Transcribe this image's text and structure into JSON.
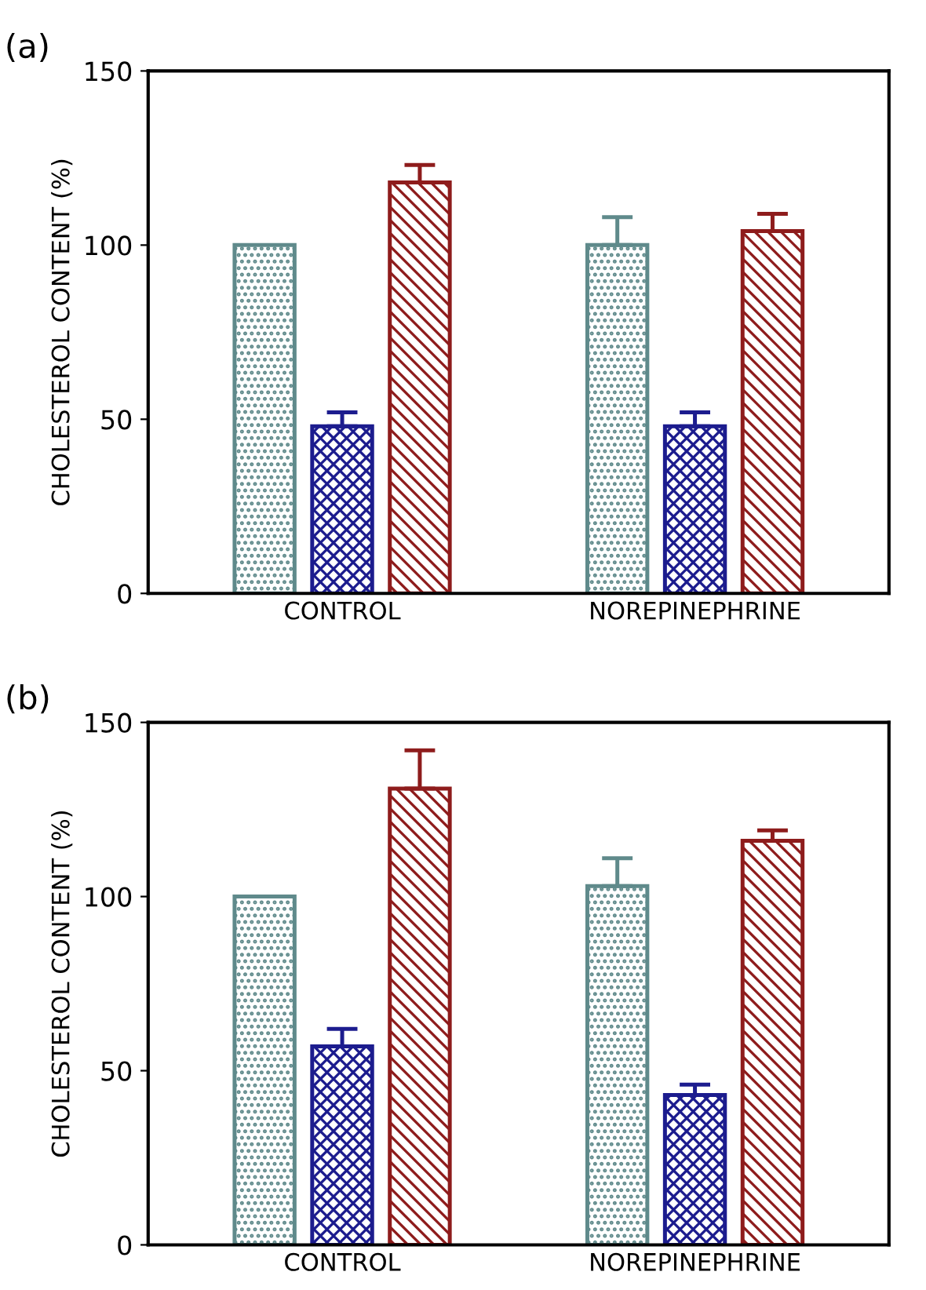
{
  "chart_data": [
    {
      "type": "bar",
      "title": "(a)",
      "ylabel": "CHOLESTEROL CONTENT (%)",
      "categories": [
        "CONTROL",
        "NOREPINEPHRINE"
      ],
      "ylim": [
        0,
        150
      ],
      "yticks": [
        0,
        50,
        100,
        150
      ],
      "grid": false,
      "legend": false,
      "series": [
        {
          "color": "#5f8a8b",
          "values": [
            100,
            100
          ],
          "errors": [
            null,
            [
              100,
              108
            ]
          ]
        },
        {
          "color": "#1c1c8e",
          "values": [
            48,
            48
          ],
          "errors": [
            [
              48,
              52
            ],
            [
              48,
              52
            ]
          ]
        },
        {
          "color": "#8e1c1c",
          "values": [
            118,
            104
          ],
          "errors": [
            [
              118,
              123
            ],
            [
              104,
              109
            ]
          ]
        }
      ]
    },
    {
      "type": "bar",
      "title": "(b)",
      "ylabel": "CHOLESTEROL CONTENT (%)",
      "categories": [
        "CONTROL",
        "NOREPINEPHRINE"
      ],
      "ylim": [
        0,
        150
      ],
      "yticks": [
        0,
        50,
        100,
        150
      ],
      "grid": false,
      "legend": false,
      "series": [
        {
          "color": "#5f8a8b",
          "values": [
            100,
            103
          ],
          "errors": [
            null,
            [
              103,
              111
            ]
          ]
        },
        {
          "color": "#1c1c8e",
          "values": [
            57,
            43
          ],
          "errors": [
            [
              57,
              62
            ],
            [
              43,
              46
            ]
          ]
        },
        {
          "color": "#8e1c1c",
          "values": [
            131,
            116
          ],
          "errors": [
            [
              131,
              142
            ],
            [
              116,
              119
            ]
          ]
        }
      ]
    }
  ]
}
